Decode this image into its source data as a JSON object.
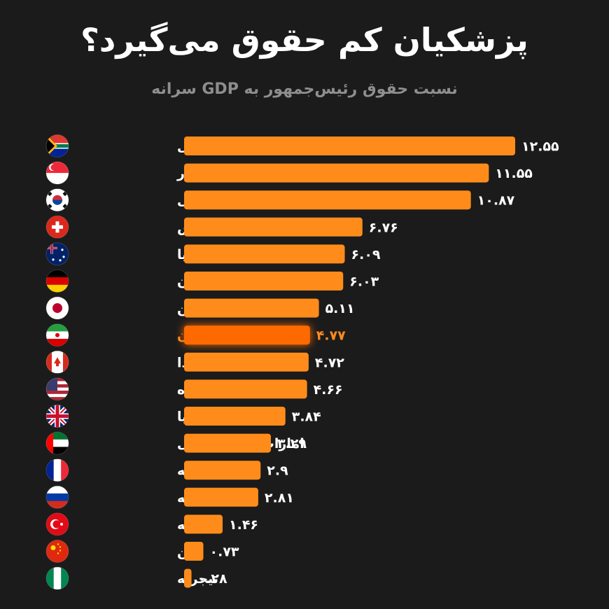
{
  "title": "پزشکیان کم حقوق می‌گیرد؟",
  "subtitle": "نسبت حقوق رئیس‌جمهور به GDP سرانه",
  "colors": {
    "bar": "#ff8c1a",
    "highlight_bar": "#ff6a00",
    "highlight_text": "#ff8a1f",
    "background": "#1b1b1b"
  },
  "chart_data": {
    "type": "bar",
    "orientation": "horizontal",
    "categories": [
      "آفریقای جنوبی",
      "سنگاپور",
      "کره جنوبی",
      "سوئیس",
      "استرالیا",
      "آلمان",
      "ژاپن",
      "ایران",
      "کانادا",
      "ایالات متحده",
      "بریتانیا",
      "امارات متحده عربی",
      "فرانسه",
      "روسیه",
      "ترکیه",
      "چین",
      "نیجریه"
    ],
    "values": [
      12.55,
      11.55,
      10.87,
      6.76,
      6.09,
      6.03,
      5.11,
      4.77,
      4.72,
      4.66,
      3.84,
      3.29,
      2.9,
      2.81,
      1.46,
      0.73,
      0.28
    ],
    "value_labels": [
      "۱۲.۵۵",
      "۱۱.۵۵",
      "۱۰.۸۷",
      "۶.۷۶",
      "۶.۰۹",
      "۶.۰۳",
      "۵.۱۱",
      "۴.۷۷",
      "۴.۷۲",
      "۴.۶۶",
      "۳.۸۴",
      "۳.۲۹",
      "۲.۹",
      "۲.۸۱",
      "۱.۴۶",
      "۰.۷۳",
      "۰.۲۸"
    ],
    "flags": [
      "south-africa-flag",
      "singapore-flag",
      "south-korea-flag",
      "switzerland-flag",
      "australia-flag",
      "germany-flag",
      "japan-flag",
      "iran-flag",
      "canada-flag",
      "usa-flag",
      "uk-flag",
      "uae-flag",
      "france-flag",
      "russia-flag",
      "turkey-flag",
      "china-flag",
      "nigeria-flag"
    ],
    "highlight": "ایران",
    "xlim": [
      0,
      12.55
    ],
    "grid": false,
    "legend": "none"
  }
}
